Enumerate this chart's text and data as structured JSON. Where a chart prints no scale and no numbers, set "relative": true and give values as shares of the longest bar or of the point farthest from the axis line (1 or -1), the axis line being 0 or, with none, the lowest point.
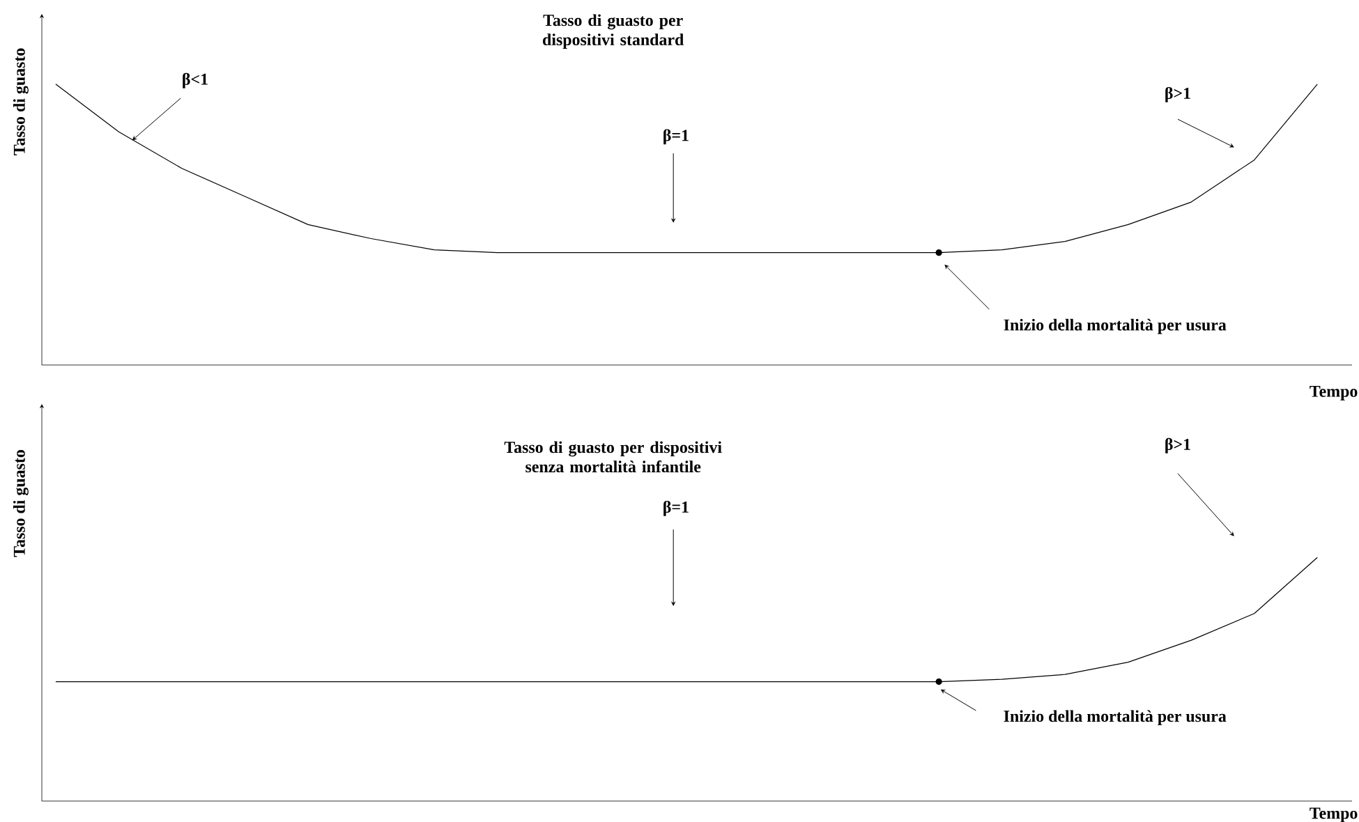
{
  "chart_data": [
    {
      "type": "line",
      "relative": true,
      "title": "Tasso di guasto  per dispositivi standard",
      "xlabel": "Tempo",
      "ylabel": "Tasso di guasto",
      "categories": [
        null,
        null,
        null,
        null,
        null,
        null,
        null,
        null,
        null,
        null,
        null,
        null,
        null,
        null,
        null,
        null,
        null,
        null,
        null,
        null,
        null
      ],
      "series": [
        {
          "color": "#000000",
          "line_style": "solid",
          "values": [
            1,
            0.83,
            0.7,
            0.6,
            0.5,
            0.45,
            0.41,
            0.4,
            0.4,
            0.4,
            0.4,
            0.4,
            0.4,
            0.4,
            0.4,
            0.41,
            0.44,
            0.5,
            0.58,
            0.73,
            1
          ]
        }
      ],
      "annotations": [
        "β<1",
        "β=1",
        "β>1",
        "Inizio della mortalità per usura"
      ]
    },
    {
      "type": "line",
      "relative": true,
      "title": "Tasso di guasto  per dispositivi senza mortalità infantile",
      "xlabel": "Tempo",
      "ylabel": "Tasso di guasto",
      "categories": [
        null,
        null,
        null,
        null,
        null,
        null,
        null,
        null,
        null,
        null,
        null,
        null,
        null,
        null,
        null,
        null,
        null,
        null,
        null,
        null,
        null
      ],
      "series": [
        {
          "color": "#000000",
          "line_style": "solid",
          "values": [
            0.49,
            0.49,
            0.49,
            0.49,
            0.49,
            0.49,
            0.49,
            0.49,
            0.49,
            0.49,
            0.49,
            0.49,
            0.49,
            0.49,
            0.49,
            0.5,
            0.52,
            0.57,
            0.66,
            0.77,
            1
          ]
        }
      ],
      "annotations": [
        "β=1",
        "β>1",
        "Inizio della mortalità per usura"
      ]
    }
  ]
}
